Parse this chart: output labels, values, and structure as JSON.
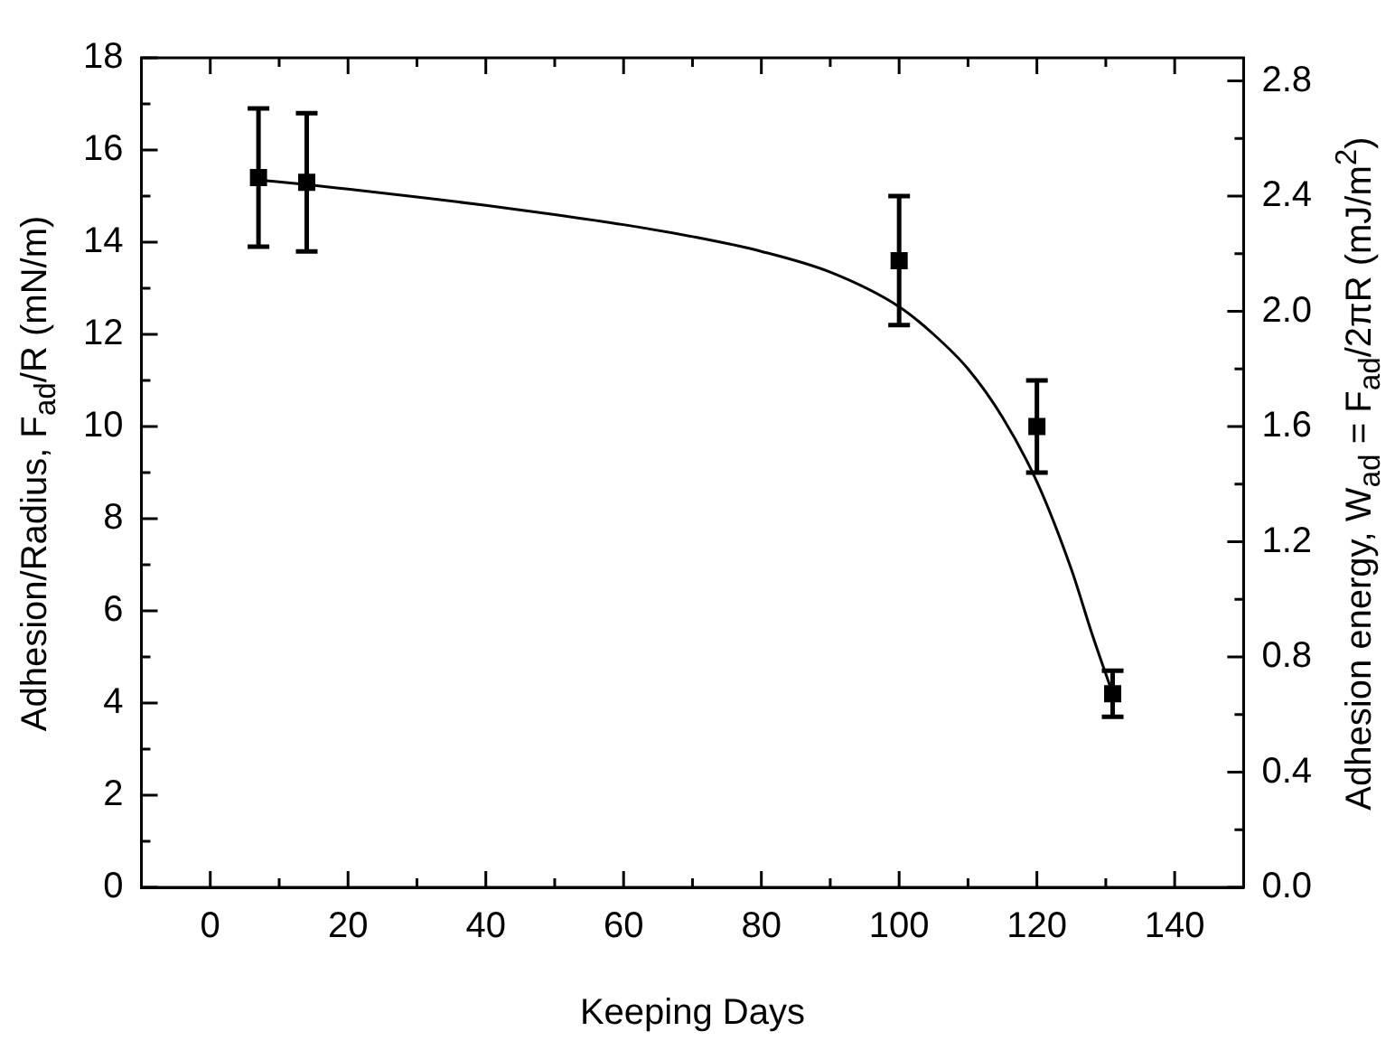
{
  "chart_data": {
    "type": "scatter",
    "xlabel": "Keeping Days",
    "ylabel": "Adhesion/Radius, F$_{ad}$/R (mN/m)",
    "y2label": "Adhesion energy, W$_{ad}$ = F$_{ad}$/2πR (mJ/m$^{2}$)",
    "xlim": [
      -10,
      150
    ],
    "xticks": [
      {
        "value": -10,
        "label": null
      },
      0,
      {
        "value": 10,
        "label": null
      },
      20,
      {
        "value": 30,
        "label": null
      },
      40,
      {
        "value": 50,
        "label": null
      },
      60,
      {
        "value": 70,
        "label": null
      },
      80,
      {
        "value": 90,
        "label": null
      },
      100,
      {
        "value": 110,
        "label": null
      },
      120,
      {
        "value": 130,
        "label": null
      },
      140
    ],
    "ylim": [
      0,
      18
    ],
    "yticks": [
      0,
      {
        "value": 1,
        "label": null
      },
      2,
      {
        "value": 3,
        "label": null
      },
      4,
      {
        "value": 5,
        "label": null
      },
      6,
      {
        "value": 7,
        "label": null
      },
      8,
      {
        "value": 9,
        "label": null
      },
      10,
      {
        "value": 11,
        "label": null
      },
      12,
      {
        "value": 13,
        "label": null
      },
      14,
      {
        "value": 15,
        "label": null
      },
      16,
      {
        "value": 17,
        "label": null
      },
      18
    ],
    "y2lim": [
      0,
      2.88
    ],
    "y2ticks": [
      {
        "value": 0,
        "label": "0.0"
      },
      {
        "value": 0.2,
        "label": null
      },
      {
        "value": 0.4,
        "label": "0.4"
      },
      {
        "value": 0.6,
        "label": null
      },
      {
        "value": 0.8,
        "label": "0.8"
      },
      {
        "value": 1.0,
        "label": null
      },
      {
        "value": 1.2,
        "label": "1.2"
      },
      {
        "value": 1.4,
        "label": null
      },
      {
        "value": 1.6,
        "label": "1.6"
      },
      {
        "value": 1.8,
        "label": null
      },
      {
        "value": 2.0,
        "label": "2.0"
      },
      {
        "value": 2.2,
        "label": null
      },
      {
        "value": 2.4,
        "label": "2.4"
      },
      {
        "value": 2.6,
        "label": null
      },
      {
        "value": 2.8,
        "label": "2.8"
      }
    ],
    "grid": false,
    "legend": false,
    "series": [
      {
        "type": "scatter",
        "color": "#000000",
        "marker": "square",
        "x": [
          7,
          14,
          100,
          120,
          131
        ],
        "values": [
          15.4,
          15.3,
          13.6,
          10.0,
          4.2
        ],
        "errors": [
          [
            13.9,
            16.9
          ],
          [
            13.8,
            16.8
          ],
          [
            12.2,
            15.0
          ],
          [
            9.0,
            11.0
          ],
          [
            3.7,
            4.7
          ]
        ]
      },
      {
        "type": "line",
        "color": "#000000",
        "marker": "none",
        "line_style": "solid",
        "x": [
          7,
          14,
          20,
          30,
          40,
          50,
          60,
          70,
          80,
          90,
          100,
          105,
          110,
          115,
          120,
          125,
          128,
          131
        ],
        "values": [
          15.35,
          15.25,
          15.15,
          14.98,
          14.8,
          14.6,
          14.38,
          14.12,
          13.8,
          13.35,
          12.6,
          12.0,
          11.25,
          10.2,
          8.8,
          6.9,
          5.5,
          4.2
        ]
      }
    ]
  }
}
